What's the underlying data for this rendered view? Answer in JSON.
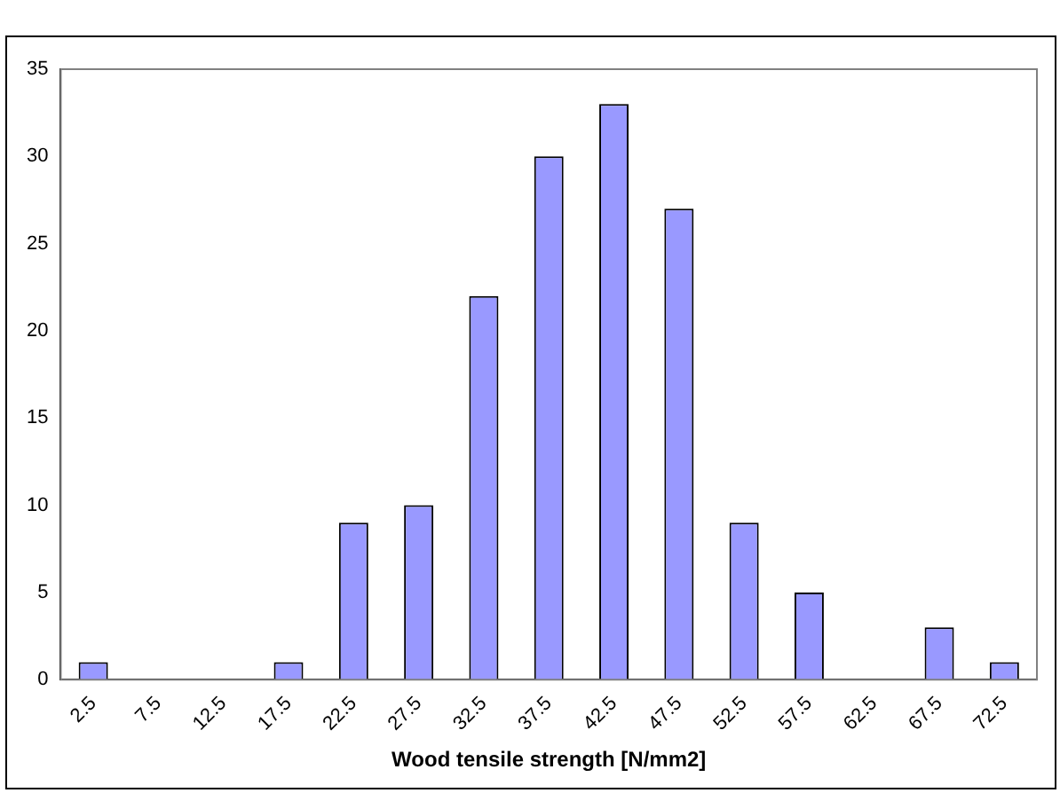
{
  "chart_data": {
    "type": "bar",
    "xlabel": "Wood tensile strength [N/mm2]",
    "categories": [
      "2.5",
      "7.5",
      "12.5",
      "17.5",
      "22.5",
      "27.5",
      "32.5",
      "37.5",
      "42.5",
      "47.5",
      "52.5",
      "57.5",
      "62.5",
      "67.5",
      "72.5"
    ],
    "values": [
      1,
      0,
      0,
      1,
      9,
      10,
      22,
      30,
      33,
      27,
      9,
      5,
      0,
      3,
      1
    ],
    "color": "#9999ff",
    "ylim": [
      0,
      35
    ],
    "yticks": [
      0,
      5,
      10,
      15,
      20,
      25,
      30,
      35
    ],
    "grid": false,
    "legend": false
  }
}
